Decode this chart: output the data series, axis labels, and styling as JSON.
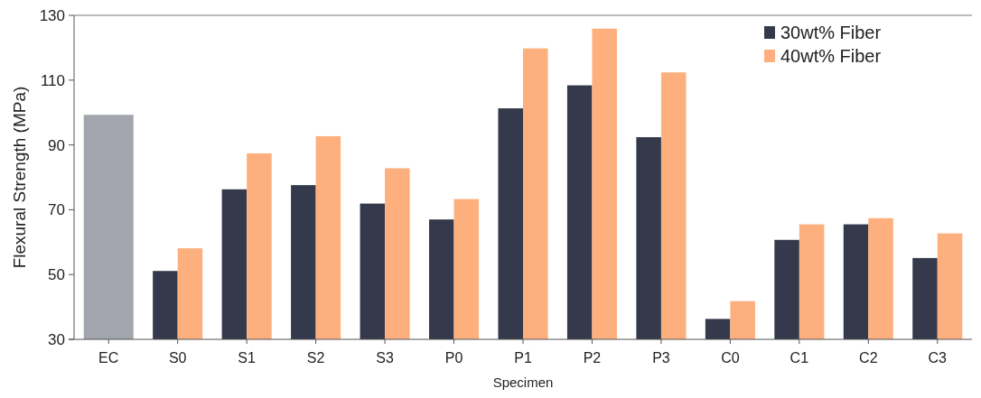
{
  "chart_data": {
    "type": "bar",
    "xlabel": "Specimen",
    "ylabel": "Flexural Strength (MPa)",
    "categories": [
      "EC",
      "S0",
      "S1",
      "S2",
      "S3",
      "P0",
      "P1",
      "P2",
      "P3",
      "C0",
      "C1",
      "C2",
      "C3"
    ],
    "series": [
      {
        "name": "30wt% Fiber",
        "color": "#343a4b",
        "colors": [
          "#a2a5ad",
          "#343a4b",
          "#343a4b",
          "#343a4b",
          "#343a4b",
          "#343a4b",
          "#343a4b",
          "#343a4b",
          "#343a4b",
          "#343a4b",
          "#343a4b",
          "#343a4b",
          "#343a4b"
        ],
        "values": [
          99.3,
          51.1,
          76.3,
          77.6,
          71.9,
          67.0,
          101.3,
          108.4,
          92.4,
          36.3,
          60.7,
          65.5,
          55.1
        ]
      },
      {
        "name": "40wt% Fiber",
        "color": "#fdb07e",
        "values": [
          null,
          58.1,
          87.4,
          92.7,
          82.8,
          73.3,
          119.8,
          125.9,
          112.4,
          41.8,
          65.5,
          67.4,
          62.7
        ]
      }
    ],
    "ylim": [
      30,
      130
    ],
    "yticks": [
      30,
      50,
      70,
      90,
      110,
      130
    ],
    "legend": "top right",
    "grid": false
  }
}
